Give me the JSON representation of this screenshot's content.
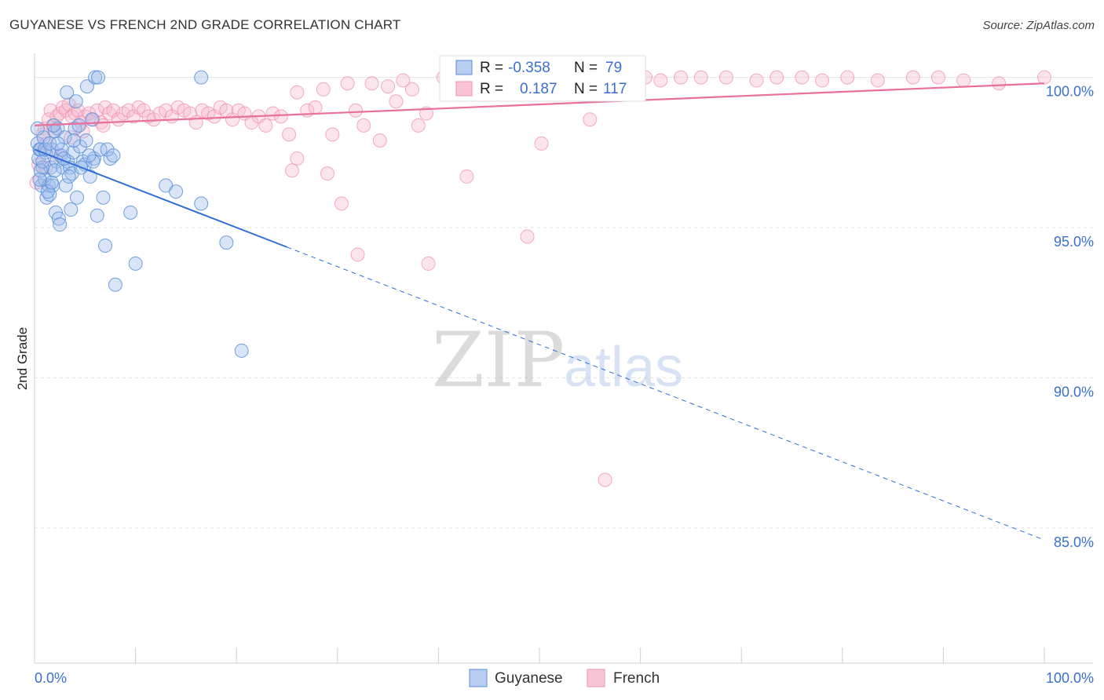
{
  "header": {
    "title": "GUYANESE VS FRENCH 2ND GRADE CORRELATION CHART",
    "source": "Source: ZipAtlas.com"
  },
  "watermark": {
    "zip": "ZIP",
    "atlas": "atlas"
  },
  "colors": {
    "blue": "#5b8fd9",
    "blue_line": "#2f6fd6",
    "pink": "#f08fb0",
    "pink_line": "#e8709a",
    "tick_text": "#3b6fcf",
    "grid": "#e3e3e3"
  },
  "chart_data": {
    "type": "scatter",
    "xlabel": "",
    "ylabel": "2nd Grade",
    "xlim": [
      0,
      100
    ],
    "ylim": [
      80.5,
      100.8
    ],
    "x_ticks": [
      {
        "value": 0,
        "label": "0.0%"
      },
      {
        "value": 100,
        "label": "100.0%"
      }
    ],
    "y_ticks": [
      {
        "value": 100,
        "label": "100.0%"
      },
      {
        "value": 95,
        "label": "95.0%"
      },
      {
        "value": 90,
        "label": "90.0%"
      },
      {
        "value": 85,
        "label": "85.0%"
      }
    ],
    "grid": true,
    "legend_position": "bottom-center",
    "stats": [
      {
        "r_label": "R =",
        "r": "-0.358",
        "n_label": "N =",
        "n": "79"
      },
      {
        "r_label": "R =",
        "r": "0.187",
        "n_label": "N =",
        "n": "117"
      }
    ],
    "series": [
      {
        "name": "Guyanese",
        "color": "#5b8fd9",
        "trend": {
          "x0": 0,
          "y0": 97.6,
          "x_solid_end": 25,
          "x1": 100,
          "y1": 84.6
        },
        "points": [
          [
            0.3,
            97.8
          ],
          [
            0.4,
            97.3
          ],
          [
            0.5,
            97.6
          ],
          [
            0.6,
            97.6
          ],
          [
            0.7,
            96.4
          ],
          [
            0.8,
            97.0
          ],
          [
            0.9,
            98.0
          ],
          [
            1.0,
            96.6
          ],
          [
            1.1,
            97.5
          ],
          [
            1.2,
            96.0
          ],
          [
            1.4,
            96.4
          ],
          [
            1.5,
            96.1
          ],
          [
            1.6,
            97.0
          ],
          [
            1.7,
            97.6
          ],
          [
            1.8,
            96.4
          ],
          [
            2.0,
            98.2
          ],
          [
            2.1,
            95.5
          ],
          [
            2.2,
            97.2
          ],
          [
            2.3,
            98.3
          ],
          [
            2.4,
            95.3
          ],
          [
            2.5,
            95.1
          ],
          [
            2.6,
            97.4
          ],
          [
            2.8,
            97.0
          ],
          [
            3.0,
            98.0
          ],
          [
            3.1,
            96.4
          ],
          [
            3.3,
            97.2
          ],
          [
            3.5,
            97.0
          ],
          [
            3.6,
            95.6
          ],
          [
            3.8,
            97.5
          ],
          [
            4.0,
            98.3
          ],
          [
            4.2,
            96.0
          ],
          [
            4.5,
            97.7
          ],
          [
            4.8,
            97.2
          ],
          [
            5.0,
            97.1
          ],
          [
            5.2,
            99.7
          ],
          [
            5.5,
            96.7
          ],
          [
            5.7,
            98.6
          ],
          [
            5.9,
            97.3
          ],
          [
            6.2,
            95.4
          ],
          [
            6.5,
            97.6
          ],
          [
            6.8,
            96.0
          ],
          [
            7.0,
            94.4
          ],
          [
            7.5,
            97.3
          ],
          [
            8.0,
            93.1
          ],
          [
            9.5,
            95.5
          ],
          [
            10.0,
            93.8
          ],
          [
            13.0,
            96.4
          ],
          [
            14.0,
            96.2
          ],
          [
            16.5,
            95.8
          ],
          [
            19.0,
            94.5
          ],
          [
            20.5,
            90.9
          ],
          [
            3.2,
            99.5
          ],
          [
            4.1,
            99.2
          ],
          [
            1.9,
            98.4
          ],
          [
            2.7,
            97.6
          ],
          [
            6.0,
            100.0
          ],
          [
            6.3,
            100.0
          ],
          [
            16.5,
            100.0
          ],
          [
            0.3,
            98.3
          ],
          [
            0.6,
            96.9
          ],
          [
            1.0,
            97.6
          ],
          [
            1.3,
            96.2
          ],
          [
            3.7,
            96.8
          ],
          [
            4.4,
            98.4
          ],
          [
            5.1,
            97.9
          ],
          [
            5.8,
            97.2
          ],
          [
            7.2,
            97.6
          ],
          [
            7.8,
            97.4
          ],
          [
            3.9,
            97.9
          ],
          [
            2.9,
            97.3
          ],
          [
            1.5,
            97.8
          ],
          [
            4.6,
            97.0
          ],
          [
            0.8,
            97.2
          ],
          [
            1.7,
            96.5
          ],
          [
            2.3,
            97.8
          ],
          [
            3.4,
            96.7
          ],
          [
            5.4,
            97.4
          ],
          [
            2.0,
            96.9
          ],
          [
            0.5,
            96.6
          ]
        ]
      },
      {
        "name": "French",
        "color": "#f08fb0",
        "trend": {
          "x0": 0,
          "y0": 98.4,
          "x1": 100,
          "y1": 99.8
        },
        "points": [
          [
            0.2,
            96.5
          ],
          [
            0.4,
            97.1
          ],
          [
            0.6,
            97.6
          ],
          [
            0.8,
            98.1
          ],
          [
            1.0,
            98.3
          ],
          [
            1.2,
            97.8
          ],
          [
            1.4,
            98.6
          ],
          [
            1.6,
            98.9
          ],
          [
            1.8,
            98.4
          ],
          [
            2.0,
            98.2
          ],
          [
            2.2,
            98.7
          ],
          [
            2.5,
            98.8
          ],
          [
            2.8,
            99.0
          ],
          [
            3.1,
            98.9
          ],
          [
            3.4,
            99.1
          ],
          [
            3.7,
            98.7
          ],
          [
            4.0,
            98.8
          ],
          [
            4.3,
            98.9
          ],
          [
            4.6,
            98.5
          ],
          [
            5.0,
            98.7
          ],
          [
            5.4,
            98.8
          ],
          [
            5.8,
            98.6
          ],
          [
            6.2,
            98.9
          ],
          [
            6.6,
            98.5
          ],
          [
            7.0,
            99.0
          ],
          [
            7.4,
            98.8
          ],
          [
            7.8,
            98.9
          ],
          [
            8.3,
            98.6
          ],
          [
            8.8,
            98.8
          ],
          [
            9.3,
            98.9
          ],
          [
            9.8,
            98.7
          ],
          [
            10.3,
            99.0
          ],
          [
            10.8,
            98.9
          ],
          [
            11.3,
            98.7
          ],
          [
            11.8,
            98.6
          ],
          [
            12.4,
            98.8
          ],
          [
            13.0,
            98.9
          ],
          [
            13.6,
            98.7
          ],
          [
            14.2,
            99.0
          ],
          [
            14.8,
            98.9
          ],
          [
            15.4,
            98.8
          ],
          [
            16.0,
            98.5
          ],
          [
            16.6,
            98.9
          ],
          [
            17.2,
            98.8
          ],
          [
            17.8,
            98.7
          ],
          [
            18.4,
            99.0
          ],
          [
            19.0,
            98.9
          ],
          [
            19.6,
            98.6
          ],
          [
            20.2,
            98.9
          ],
          [
            20.8,
            98.8
          ],
          [
            21.5,
            98.5
          ],
          [
            22.2,
            98.7
          ],
          [
            22.9,
            98.4
          ],
          [
            23.6,
            98.8
          ],
          [
            24.4,
            98.7
          ],
          [
            25.2,
            98.1
          ],
          [
            26.0,
            97.3
          ],
          [
            25.5,
            96.9
          ],
          [
            26.0,
            99.5
          ],
          [
            27.0,
            98.9
          ],
          [
            27.8,
            99.0
          ],
          [
            28.6,
            99.6
          ],
          [
            29.0,
            96.8
          ],
          [
            29.5,
            98.1
          ],
          [
            30.4,
            95.8
          ],
          [
            31.0,
            99.8
          ],
          [
            31.8,
            98.9
          ],
          [
            32.0,
            94.1
          ],
          [
            32.6,
            98.4
          ],
          [
            33.4,
            99.8
          ],
          [
            34.2,
            97.9
          ],
          [
            35.0,
            99.7
          ],
          [
            35.8,
            99.2
          ],
          [
            36.5,
            99.9
          ],
          [
            37.4,
            99.6
          ],
          [
            38.0,
            98.4
          ],
          [
            38.8,
            98.8
          ],
          [
            39.0,
            93.8
          ],
          [
            40.5,
            100.0
          ],
          [
            41.2,
            99.8
          ],
          [
            42.0,
            100.0
          ],
          [
            42.8,
            96.7
          ],
          [
            43.5,
            99.9
          ],
          [
            44.5,
            100.0
          ],
          [
            45.5,
            99.8
          ],
          [
            46.5,
            100.0
          ],
          [
            47.5,
            99.9
          ],
          [
            48.8,
            94.7
          ],
          [
            50.2,
            97.8
          ],
          [
            51.5,
            100.0
          ],
          [
            52.5,
            99.9
          ],
          [
            53.5,
            99.8
          ],
          [
            55.0,
            98.6
          ],
          [
            56.5,
            86.6
          ],
          [
            57.5,
            99.9
          ],
          [
            58.5,
            100.0
          ],
          [
            60.5,
            100.0
          ],
          [
            62.0,
            99.9
          ],
          [
            64.0,
            100.0
          ],
          [
            66.0,
            100.0
          ],
          [
            68.5,
            100.0
          ],
          [
            71.5,
            99.9
          ],
          [
            73.5,
            100.0
          ],
          [
            76.0,
            100.0
          ],
          [
            78.0,
            99.9
          ],
          [
            80.5,
            100.0
          ],
          [
            83.5,
            99.9
          ],
          [
            87.0,
            100.0
          ],
          [
            89.5,
            100.0
          ],
          [
            92.0,
            99.9
          ],
          [
            95.5,
            99.8
          ],
          [
            100.0,
            100.0
          ],
          [
            1.1,
            97.0
          ],
          [
            2.4,
            97.4
          ],
          [
            3.6,
            98.0
          ],
          [
            4.8,
            98.2
          ],
          [
            6.8,
            98.4
          ]
        ]
      }
    ]
  }
}
